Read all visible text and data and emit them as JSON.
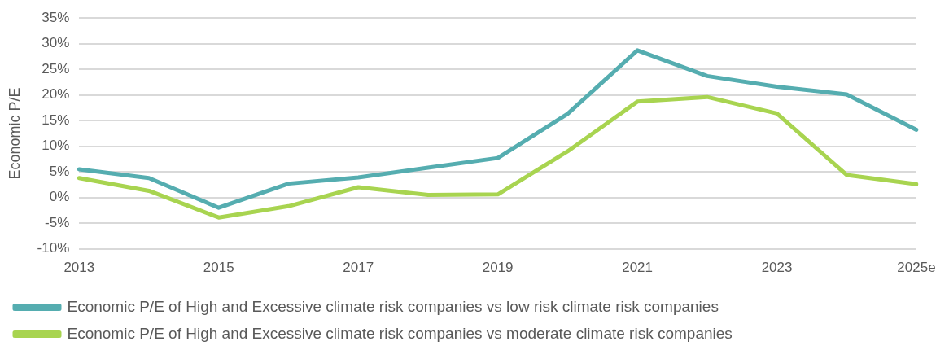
{
  "chart_data": {
    "type": "line",
    "ylabel": "Economic P/E",
    "categories": [
      "2013",
      null,
      "2015",
      null,
      "2017",
      null,
      "2019",
      null,
      "2021",
      null,
      "2023",
      null,
      "2025e"
    ],
    "series": [
      {
        "name": "Economic P/E of High and Excessive climate risk companies vs low risk climate risk companies",
        "color": "#55adb0",
        "values": [
          5.5,
          3.8,
          -2.0,
          2.7,
          3.9,
          5.8,
          7.7,
          16.3,
          28.7,
          23.7,
          21.6,
          20.1,
          13.2
        ]
      },
      {
        "name": "Economic P/E of High and Excessive climate risk companies vs moderate climate risk companies",
        "color": "#a8d450",
        "values": [
          3.8,
          1.3,
          -3.9,
          -1.7,
          2.0,
          0.5,
          0.6,
          9.0,
          18.7,
          19.6,
          16.4,
          4.4,
          2.6
        ]
      }
    ],
    "ylim": [
      -10,
      35
    ],
    "yticks": [
      {
        "value": -10,
        "label": "-10%"
      },
      {
        "value": -5,
        "label": "-5%"
      },
      {
        "value": 0,
        "label": "0%"
      },
      {
        "value": 5,
        "label": "5%"
      },
      {
        "value": 10,
        "label": "10%"
      },
      {
        "value": 15,
        "label": "15%"
      },
      {
        "value": 20,
        "label": "20%"
      },
      {
        "value": 25,
        "label": "25%"
      },
      {
        "value": 30,
        "label": "30%"
      },
      {
        "value": 35,
        "label": "35%"
      }
    ],
    "grid": "y",
    "legend": "bottom",
    "marker": "none",
    "line_style": "solid"
  }
}
